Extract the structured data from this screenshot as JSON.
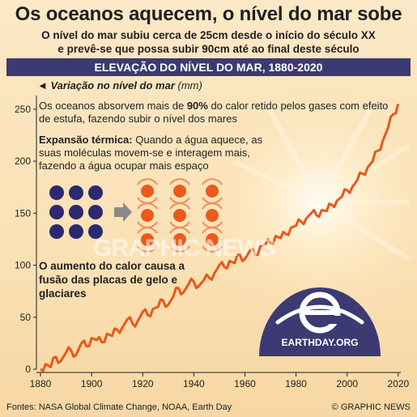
{
  "headline": "Os oceanos aquecem, o nível do mar sobe",
  "subtitle_line1": "O nível do mar subiu cerca de 25cm desde o início do século XX",
  "subtitle_line2": "e prevê-se que possa subir 90cm até ao final deste século",
  "banner": "ELEVAÇÃO DO NÍVEL DO MAR, 1880-2020",
  "note1_pre": "Os oceanos absorvem mais de ",
  "note1_bold": "90%",
  "note1_post": " do calor retido pelos gases com efeito de estufa, fazendo subir o nível dos mares",
  "note2_bold": "Expansão térmica:",
  "note2_text": " Quando a água aquece, as suas moléculas movem-se e interagem mais, fazendo a água ocupar mais espaço",
  "note3": "O aumento do calor causa a fusão das placas de gelo e glaciares",
  "sources": "Fontes: NASA Global Climate Change, NOAA, Earth Day",
  "copyright": "© GRAPHIC NEWS",
  "watermark": "GRAPHIC NEWS",
  "earthday_logo_text": "EARTHDAY.ORG",
  "colors": {
    "line": "#e8581a",
    "banner": "#3c3a72",
    "molecule_cold": "#2c2970",
    "molecule_hot": "#ea5a1c",
    "arrow": "#8a8a8a",
    "logo": "#3c3a72"
  },
  "chart_data": {
    "type": "line",
    "title": "ELEVAÇÃO DO NÍVEL DO MAR, 1880-2020",
    "ylabel": "Variação no nível do mar",
    "yunit": "(mm)",
    "xlim": [
      1880,
      2021
    ],
    "ylim": [
      0,
      260
    ],
    "xticks": [
      1880,
      1900,
      1920,
      1940,
      1960,
      1980,
      2000,
      2020
    ],
    "yticks": [
      0,
      50,
      100,
      150,
      200,
      250
    ],
    "grid": false,
    "series": [
      {
        "x": [
          1880,
          1882,
          1884,
          1886,
          1888,
          1890,
          1892,
          1894,
          1896,
          1898,
          1900,
          1902,
          1904,
          1906,
          1908,
          1910,
          1912,
          1914,
          1916,
          1918,
          1920,
          1922,
          1924,
          1926,
          1928,
          1930,
          1932,
          1934,
          1936,
          1938,
          1940,
          1942,
          1944,
          1946,
          1948,
          1950,
          1952,
          1954,
          1956,
          1958,
          1960,
          1962,
          1964,
          1966,
          1968,
          1970,
          1972,
          1974,
          1976,
          1978,
          1980,
          1982,
          1984,
          1986,
          1988,
          1990,
          1992,
          1994,
          1996,
          1998,
          2000,
          2002,
          2004,
          2006,
          2008,
          2010,
          2012,
          2014,
          2016,
          2018,
          2020
        ],
        "y": [
          0,
          5,
          2,
          12,
          8,
          16,
          18,
          14,
          25,
          22,
          30,
          28,
          26,
          34,
          32,
          38,
          40,
          48,
          44,
          46,
          55,
          52,
          58,
          60,
          66,
          62,
          70,
          78,
          74,
          82,
          84,
          80,
          86,
          88,
          92,
          100,
          98,
          104,
          102,
          110,
          106,
          114,
          110,
          118,
          120,
          122,
          128,
          126,
          130,
          136,
          138,
          142,
          145,
          150,
          148,
          153,
          152,
          158,
          162,
          166,
          172,
          175,
          182,
          188,
          194,
          200,
          210,
          220,
          232,
          245,
          255
        ]
      }
    ]
  }
}
